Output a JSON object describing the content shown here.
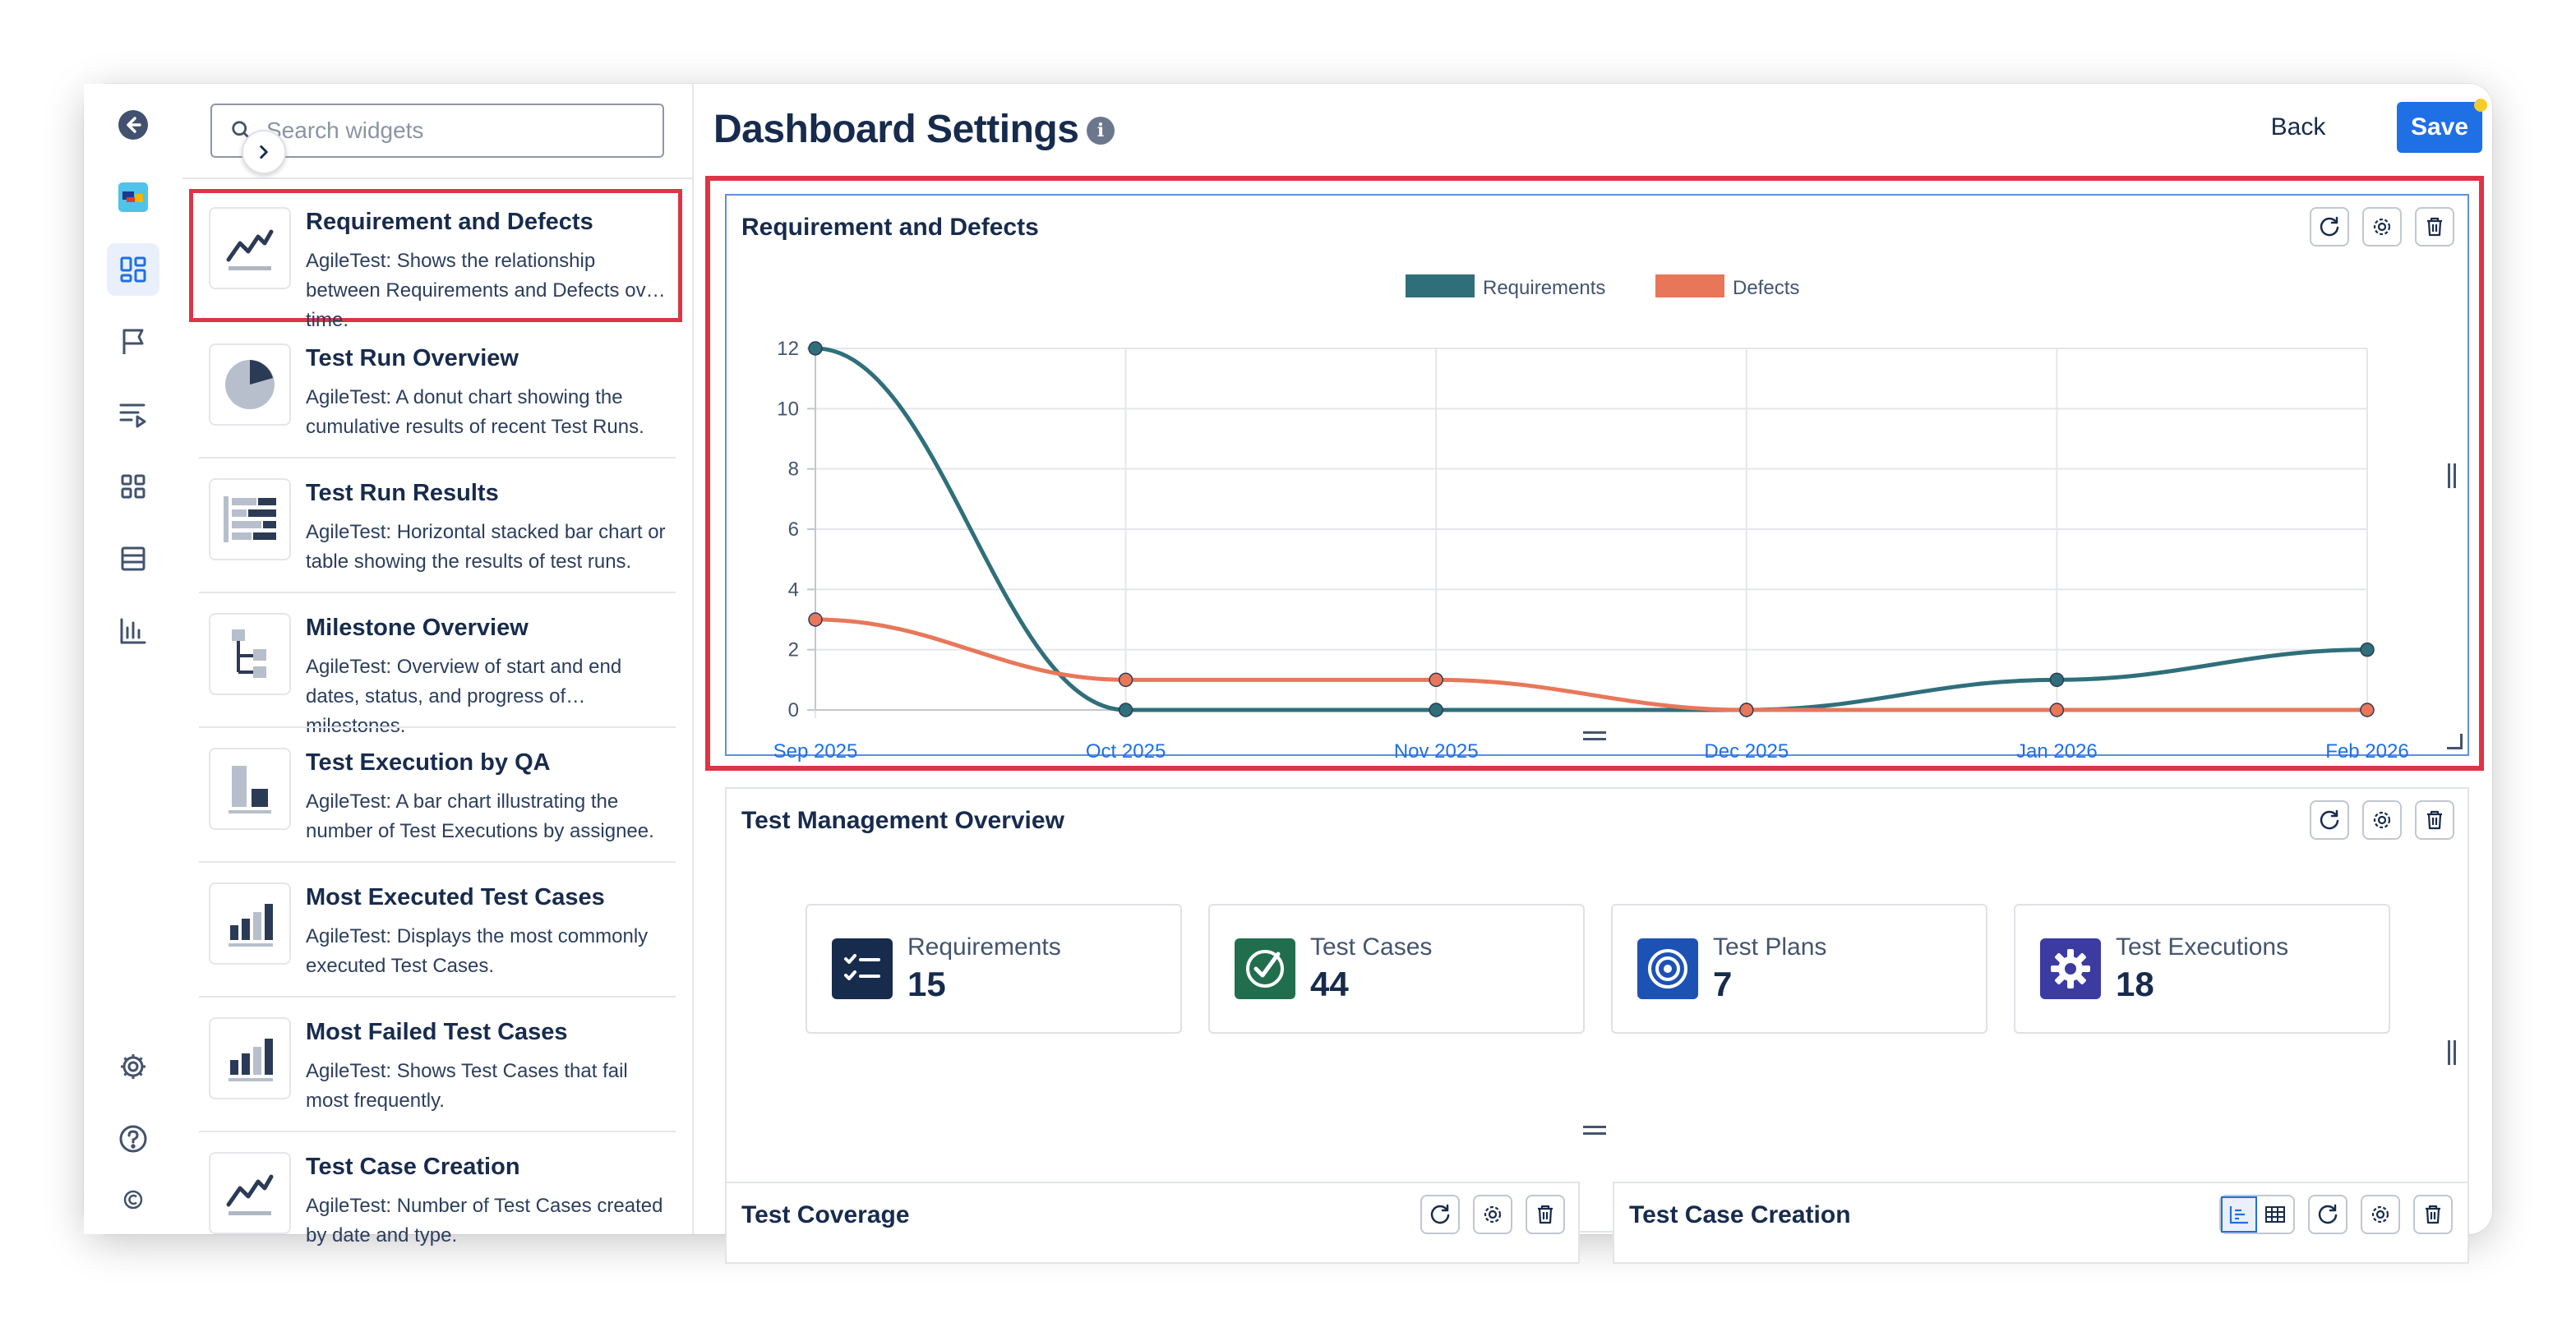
{
  "search": {
    "placeholder": "Search widgets"
  },
  "widgets": [
    {
      "title": "Requirement and Defects",
      "desc": "AgileTest: Shows the relationship between Requirements and Defects over time.",
      "icon": "line-chart-icon"
    },
    {
      "title": "Test Run Overview",
      "desc": "AgileTest: A donut chart showing the cumulative results of recent Test Runs.",
      "icon": "pie-chart-icon"
    },
    {
      "title": "Test Run Results",
      "desc": "AgileTest: Horizontal stacked bar chart or table showing the results of test runs.",
      "icon": "stacked-bar-icon"
    },
    {
      "title": "Milestone Overview",
      "desc": "AgileTest: Overview of start and end dates, status, and progress of milestones.",
      "icon": "hierarchy-icon"
    },
    {
      "title": "Test Execution by QA",
      "desc": "AgileTest: A bar chart illustrating the number of Test Executions by assignee.",
      "icon": "bar-chart-icon"
    },
    {
      "title": "Most Executed Test Cases",
      "desc": "AgileTest: Displays the most commonly executed Test Cases.",
      "icon": "bar-chart-rising-icon"
    },
    {
      "title": "Most Failed Test Cases",
      "desc": "AgileTest: Shows Test Cases that fail most frequently.",
      "icon": "bar-chart-rising-icon"
    },
    {
      "title": "Test Case Creation",
      "desc": "AgileTest: Number of Test Cases created by date and type.",
      "icon": "line-chart-icon"
    }
  ],
  "header": {
    "title": "Dashboard Settings",
    "back_label": "Back",
    "save_label": "Save",
    "accent": "#1f6fe5"
  },
  "cards": {
    "req_defects": {
      "title": "Requirement and Defects"
    },
    "tmo": {
      "title": "Test Management Overview",
      "stats": [
        {
          "label": "Requirements",
          "value": "15",
          "icon": "checklist-icon",
          "color": "#172b4d"
        },
        {
          "label": "Test Cases",
          "value": "44",
          "icon": "check-circle-icon",
          "color": "#216e4e"
        },
        {
          "label": "Test Plans",
          "value": "7",
          "icon": "target-icon",
          "color": "#1d52b5"
        },
        {
          "label": "Test Executions",
          "value": "18",
          "icon": "gear-icon",
          "color": "#3b3ba1"
        }
      ]
    },
    "coverage": {
      "title": "Test Coverage"
    },
    "creation": {
      "title": "Test Case Creation"
    }
  },
  "chart_data": {
    "type": "line",
    "categories": [
      "Sep 2025",
      "Oct 2025",
      "Nov 2025",
      "Dec 2025",
      "Jan 2026",
      "Feb 2026"
    ],
    "series": [
      {
        "name": "Requirements",
        "values": [
          12,
          0,
          0,
          0,
          1,
          2
        ],
        "color": "#2f6f7a"
      },
      {
        "name": "Defects",
        "values": [
          3,
          1,
          1,
          0,
          0,
          0
        ],
        "color": "#e8775a"
      }
    ],
    "ylim": [
      0,
      12
    ],
    "yticks": [
      "0",
      "2",
      "4",
      "6",
      "8",
      "10",
      "12"
    ],
    "legend": "top-center",
    "grid": true
  }
}
